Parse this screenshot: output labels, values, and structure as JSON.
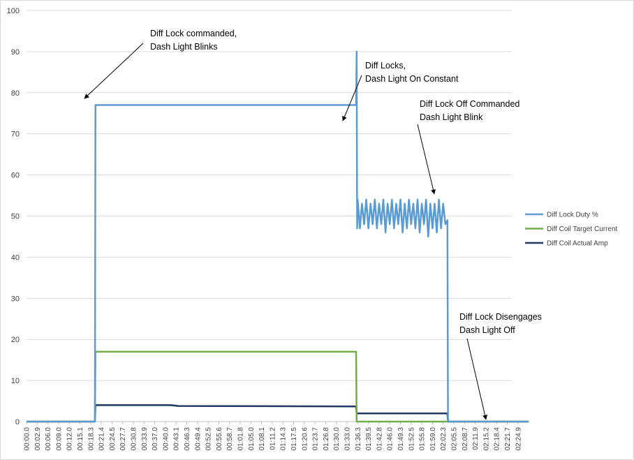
{
  "chart_data": {
    "type": "line",
    "title": "",
    "xlabel": "",
    "ylabel": "",
    "ylim": [
      0,
      100
    ],
    "yticks": [
      0,
      10,
      20,
      30,
      40,
      50,
      60,
      70,
      80,
      90,
      100
    ],
    "grid": "horizontal",
    "legend_position": "right",
    "x_tick_labels": [
      "00:00.0",
      "00:02.9",
      "00:06.0",
      "00:09.0",
      "00:12.0",
      "00:15.1",
      "00:18.3",
      "00:21.4",
      "00:24.5",
      "00:27.7",
      "00:30.8",
      "00:33.9",
      "00:37.0",
      "00:40.0",
      "00:43.1",
      "00:46.3",
      "00:49.4",
      "00:52.5",
      "00:55.6",
      "00:58.7",
      "01:01.8",
      "01:05.0",
      "01:08.1",
      "01:11.2",
      "01:14.3",
      "01:17.5",
      "01:20.6",
      "01:23.7",
      "01:26.8",
      "01:30.0",
      "01:33.0",
      "01:36.3",
      "01:39.5",
      "01:42.8",
      "01:46.0",
      "01:49.3",
      "01:52.5",
      "01:55.8",
      "01:59.0",
      "02:02.3",
      "02:05.5",
      "02:08.7",
      "02:11.9",
      "02:15.2",
      "02:18.4",
      "02:21.7",
      "02:24.9"
    ],
    "series": [
      {
        "name": "Diff Lock Duty %",
        "color": "#5b9bd5",
        "points": [
          [
            0,
            0
          ],
          [
            6.4,
            0
          ],
          [
            6.45,
            77
          ],
          [
            30.85,
            77
          ],
          [
            30.9,
            90
          ],
          [
            30.95,
            47
          ],
          [
            31.0,
            54
          ],
          [
            31.2,
            47
          ],
          [
            31.4,
            53
          ],
          [
            31.6,
            48
          ],
          [
            31.8,
            54
          ],
          [
            32.0,
            47
          ],
          [
            32.2,
            53
          ],
          [
            32.4,
            48
          ],
          [
            32.6,
            54
          ],
          [
            32.8,
            47
          ],
          [
            33.0,
            53
          ],
          [
            33.2,
            48
          ],
          [
            33.4,
            54
          ],
          [
            33.6,
            46
          ],
          [
            33.8,
            53
          ],
          [
            34.0,
            48
          ],
          [
            34.2,
            54
          ],
          [
            34.4,
            47
          ],
          [
            34.6,
            53
          ],
          [
            34.8,
            48
          ],
          [
            35.0,
            54
          ],
          [
            35.2,
            46
          ],
          [
            35.4,
            53
          ],
          [
            35.6,
            47
          ],
          [
            35.8,
            54
          ],
          [
            36.0,
            48
          ],
          [
            36.2,
            53
          ],
          [
            36.4,
            47
          ],
          [
            36.6,
            54
          ],
          [
            36.8,
            46
          ],
          [
            37.0,
            53
          ],
          [
            37.2,
            48
          ],
          [
            37.4,
            54
          ],
          [
            37.6,
            45
          ],
          [
            37.8,
            53
          ],
          [
            38.0,
            47
          ],
          [
            38.2,
            53
          ],
          [
            38.4,
            46
          ],
          [
            38.6,
            54
          ],
          [
            38.8,
            47
          ],
          [
            39.0,
            53
          ],
          [
            39.2,
            48
          ],
          [
            39.4,
            49
          ],
          [
            39.45,
            0
          ],
          [
            47,
            0
          ]
        ]
      },
      {
        "name": "Diff Coil Target Current",
        "color": "#70ad47",
        "points": [
          [
            0,
            0
          ],
          [
            6.4,
            0
          ],
          [
            6.45,
            17
          ],
          [
            30.85,
            17
          ],
          [
            30.9,
            0
          ],
          [
            47,
            0
          ]
        ]
      },
      {
        "name": "Diff Coil Actual Amp",
        "color": "#1f3864",
        "points": [
          [
            0,
            0
          ],
          [
            6.4,
            0
          ],
          [
            6.45,
            4
          ],
          [
            13.5,
            4
          ],
          [
            14.2,
            3.8
          ],
          [
            30.85,
            3.7
          ],
          [
            30.9,
            2
          ],
          [
            39.4,
            2
          ],
          [
            39.45,
            0
          ],
          [
            47,
            0
          ]
        ]
      }
    ],
    "annotations": [
      {
        "lines": [
          "Diff Lock commanded,",
          "Dash Light Blinks"
        ],
        "x": 6.45,
        "y": 77
      },
      {
        "lines": [
          "Diff Locks,",
          "Dash Light On Constant"
        ],
        "x": 31.0,
        "y": 73
      },
      {
        "lines": [
          "Diff Lock Off Commanded",
          "Dash Light Blink"
        ],
        "x": 39.3,
        "y": 55
      },
      {
        "lines": [
          "Diff Lock Disengages",
          "Dash Light Off"
        ],
        "x": 42.5,
        "y": 0
      }
    ]
  }
}
